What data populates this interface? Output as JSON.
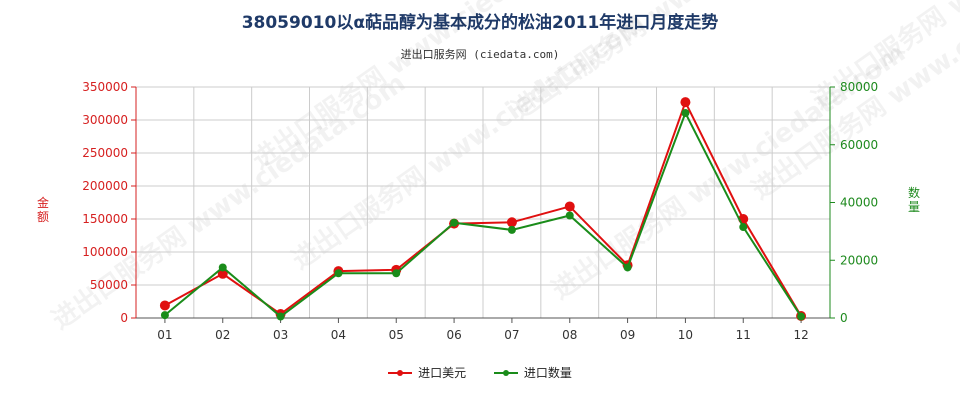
{
  "title": "38059010以α萜品醇为基本成分的松油2011年进口月度走势",
  "subtitle": "进出口服务网 (ciedata.com)",
  "watermark": "进出口服务网 www.ciedata.com",
  "colors": {
    "left_axis": "#d62020",
    "right_axis": "#1e8a1e",
    "grid": "#cccccc",
    "title": "#1f3a68"
  },
  "chart_data": {
    "type": "line",
    "categories": [
      "01",
      "02",
      "03",
      "04",
      "05",
      "06",
      "07",
      "08",
      "09",
      "10",
      "11",
      "12"
    ],
    "series": [
      {
        "name": "进口美元",
        "axis": "left",
        "color": "#e01010",
        "values": [
          19000,
          67000,
          6000,
          71000,
          73000,
          143000,
          145000,
          169000,
          80000,
          327000,
          150000,
          3000
        ]
      },
      {
        "name": "进口数量",
        "axis": "right",
        "color": "#1a8c1a",
        "values": [
          1000,
          17500,
          500,
          15500,
          15500,
          33000,
          30500,
          35500,
          17500,
          71000,
          31500,
          500
        ]
      }
    ],
    "ylabel_left": "金额",
    "ylabel_right": "数量",
    "ylim_left": [
      0,
      350000
    ],
    "ylim_right": [
      0,
      80000
    ],
    "yticks_left": [
      "0",
      "50000",
      "100000",
      "150000",
      "200000",
      "250000",
      "300000",
      "350000"
    ],
    "yticks_right": [
      "0",
      "20000",
      "40000",
      "60000",
      "80000"
    ],
    "grid": true,
    "legend_position": "bottom"
  }
}
